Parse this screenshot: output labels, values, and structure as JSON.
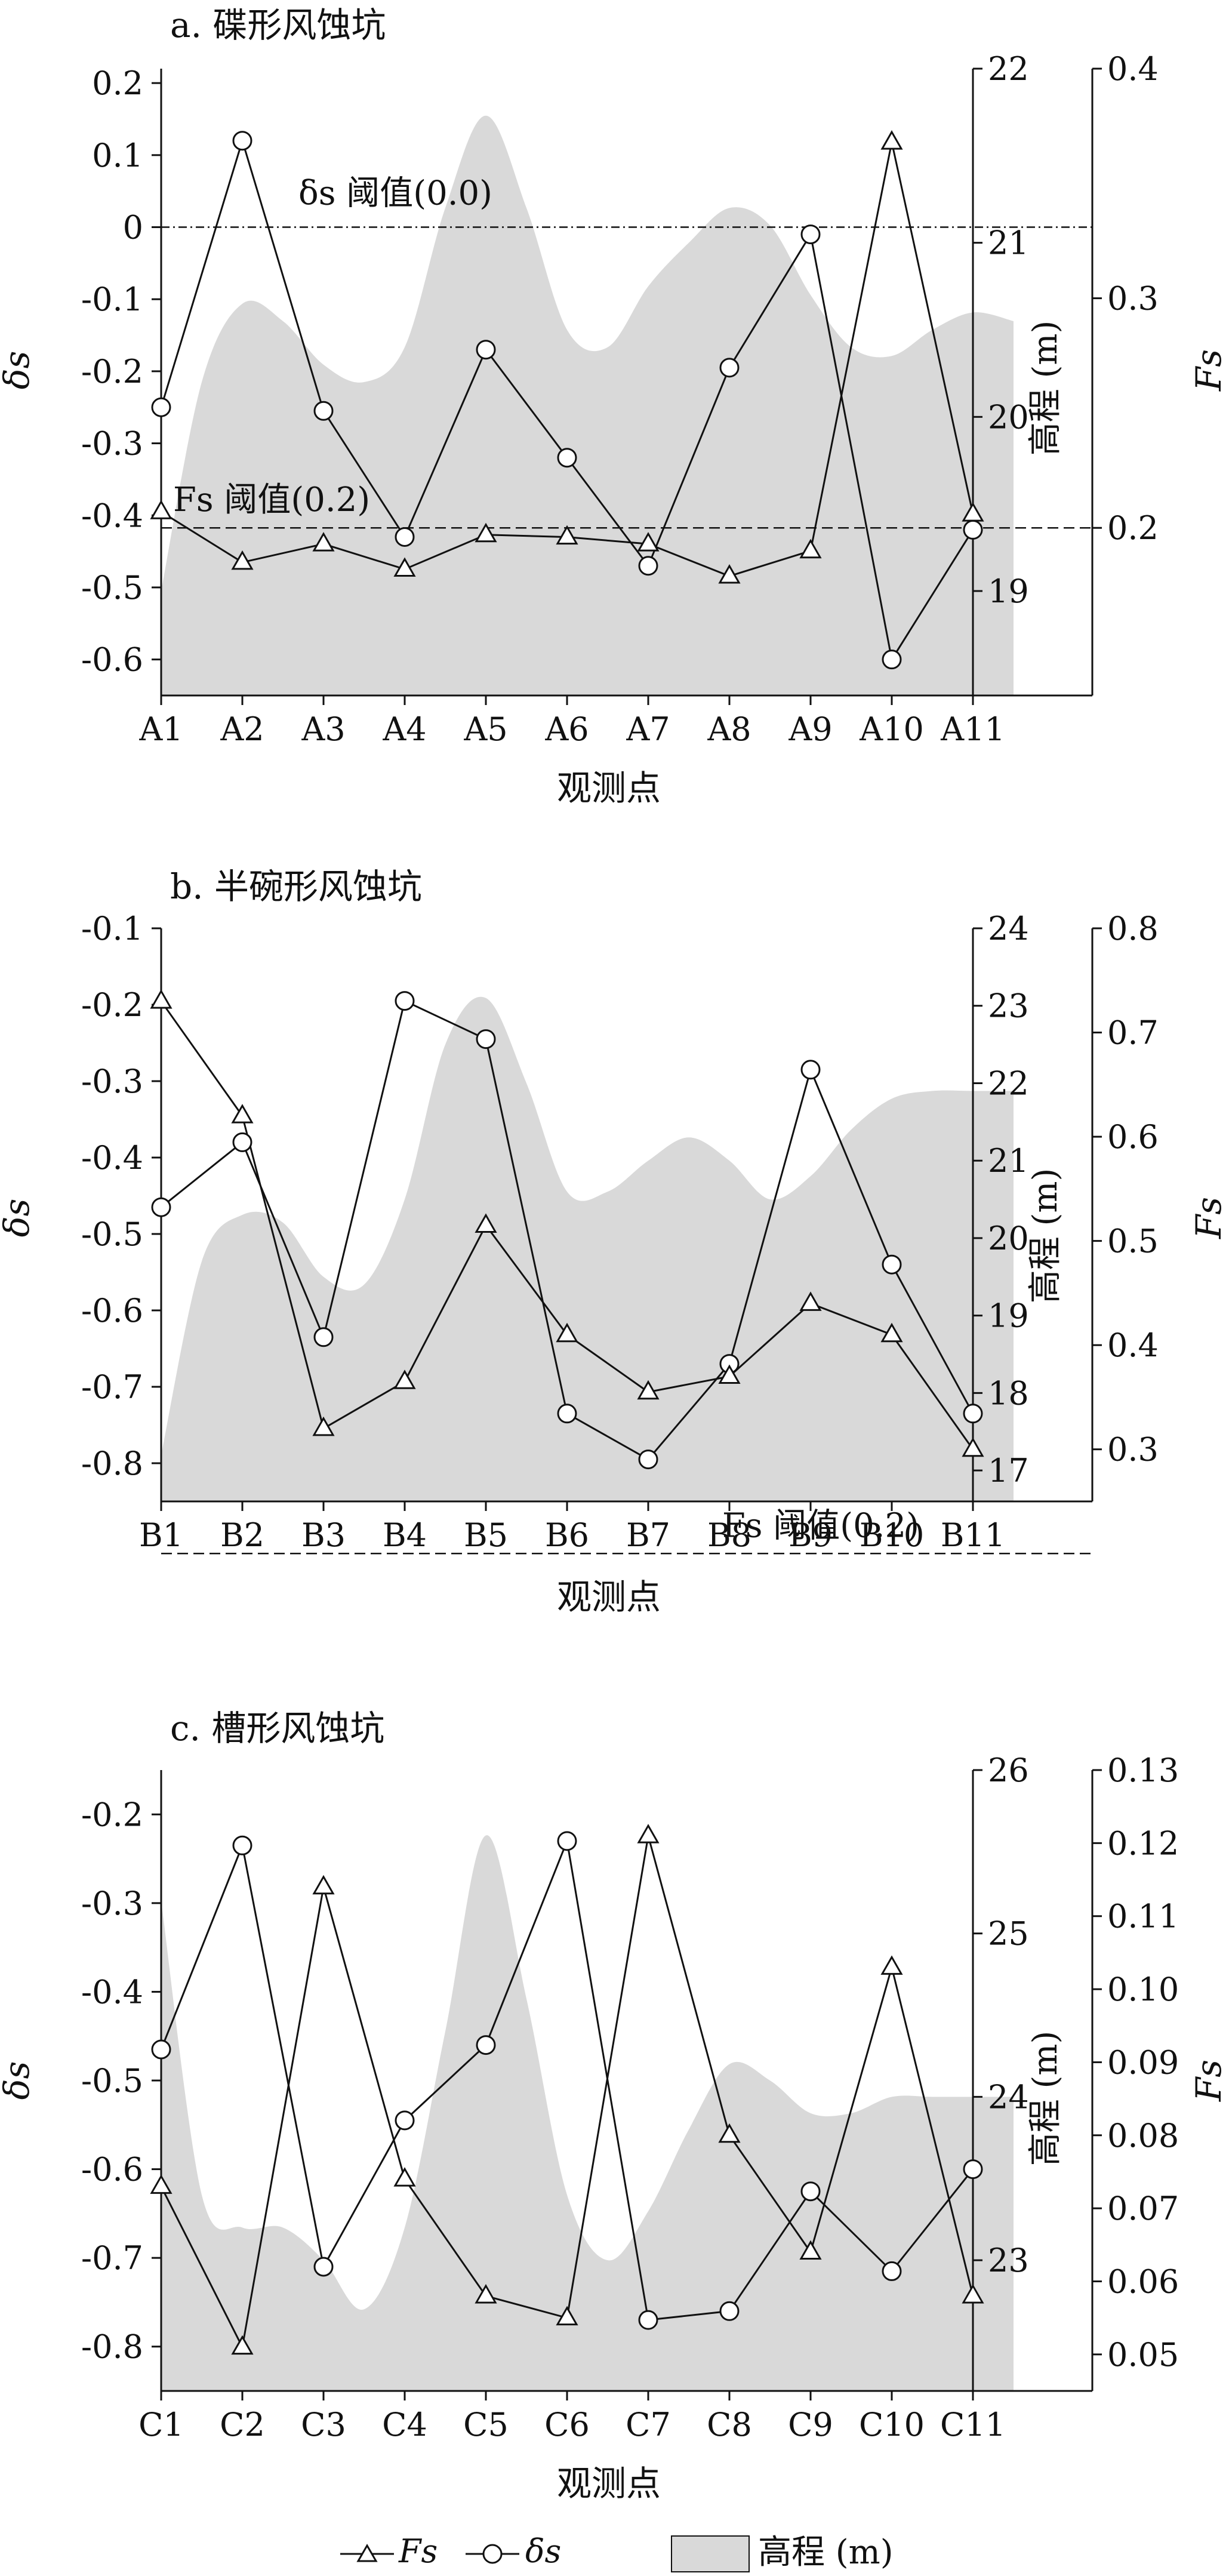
{
  "figure": {
    "legend": {
      "fs_label": "Fs",
      "ds_label": "δs",
      "elev_label": "高程 (m)"
    }
  },
  "chart_data": [
    {
      "type": "line",
      "title": "a. 碟形风蚀坑",
      "xlabel": "观测点",
      "categories": [
        "A1",
        "A2",
        "A3",
        "A4",
        "A5",
        "A6",
        "A7",
        "A8",
        "A9",
        "A10",
        "A11"
      ],
      "ds": {
        "axis_label": "δs",
        "ylim": [
          -0.65,
          0.22
        ],
        "ticks": [
          0.2,
          0.1,
          0,
          -0.1,
          -0.2,
          -0.3,
          -0.4,
          -0.5,
          -0.6
        ],
        "tick_labels": [
          "0.2",
          "0.1",
          "0",
          "-0.1",
          "-0.2",
          "-0.3",
          "-0.4",
          "-0.5",
          "-0.6"
        ],
        "values": [
          -0.25,
          0.12,
          -0.255,
          -0.43,
          -0.17,
          -0.32,
          -0.47,
          -0.195,
          -0.01,
          -0.6,
          -0.42
        ]
      },
      "fs": {
        "axis_label": "Fs",
        "ylim": [
          0.127,
          0.4
        ],
        "ticks": [
          0.4,
          0.3,
          0.2
        ],
        "tick_labels": [
          "0.4",
          "0.3",
          "0.2"
        ],
        "values": [
          0.207,
          0.185,
          0.193,
          0.182,
          0.197,
          0.196,
          0.193,
          0.179,
          0.19,
          0.368,
          0.206
        ]
      },
      "elevation": {
        "axis_label": "高程 (m)",
        "ylim": [
          18.4,
          22.0
        ],
        "ticks": [
          22,
          21,
          20,
          19
        ],
        "tick_labels": [
          "22",
          "21",
          "20",
          "19"
        ],
        "x": [
          0,
          0.5,
          1,
          1.5,
          2,
          2.5,
          3,
          3.5,
          4,
          4.5,
          5,
          5.5,
          6,
          6.5,
          7,
          7.5,
          8,
          8.5,
          9,
          9.5,
          10,
          10.5
        ],
        "values": [
          19.0,
          20.2,
          20.65,
          20.55,
          20.3,
          20.2,
          20.4,
          21.2,
          21.73,
          21.2,
          20.5,
          20.4,
          20.75,
          21.0,
          21.2,
          21.1,
          20.7,
          20.4,
          20.35,
          20.5,
          20.6,
          20.55
        ]
      },
      "thresholds": [
        {
          "label": "δs 阈值(0.0)",
          "axis": "ds",
          "value": 0.0,
          "style": "dashdot"
        },
        {
          "label": "Fs 阈值(0.2)",
          "axis": "fs",
          "value": 0.2,
          "style": "dashed"
        }
      ]
    },
    {
      "type": "line",
      "title": "b. 半碗形风蚀坑",
      "xlabel": "观测点",
      "categories": [
        "B1",
        "B2",
        "B3",
        "B4",
        "B5",
        "B6",
        "B7",
        "B8",
        "B9",
        "B10",
        "B11"
      ],
      "ds": {
        "axis_label": "δs",
        "ylim": [
          -0.85,
          -0.1
        ],
        "ticks": [
          -0.1,
          -0.2,
          -0.3,
          -0.4,
          -0.5,
          -0.6,
          -0.7,
          -0.8
        ],
        "tick_labels": [
          "-0.1",
          "-0.2",
          "-0.3",
          "-0.4",
          "-0.5",
          "-0.6",
          "-0.7",
          "-0.8"
        ],
        "values": [
          -0.465,
          -0.38,
          -0.635,
          -0.195,
          -0.245,
          -0.735,
          -0.795,
          -0.67,
          -0.285,
          -0.54,
          -0.735
        ]
      },
      "fs": {
        "axis_label": "Fs",
        "ylim": [
          0.25,
          0.8
        ],
        "ticks": [
          0.8,
          0.7,
          0.6,
          0.5,
          0.4,
          0.3
        ],
        "tick_labels": [
          "0.8",
          "0.7",
          "0.6",
          "0.5",
          "0.4",
          "0.3"
        ],
        "values": [
          0.73,
          0.62,
          0.32,
          0.365,
          0.515,
          0.41,
          0.355,
          0.37,
          0.44,
          0.41,
          0.3
        ]
      },
      "elevation": {
        "axis_label": "高程 (m)",
        "ylim": [
          16.6,
          24.0
        ],
        "ticks": [
          24,
          23,
          22,
          21,
          20,
          19,
          18,
          17
        ],
        "tick_labels": [
          "24",
          "23",
          "22",
          "21",
          "20",
          "19",
          "18",
          "17"
        ],
        "x": [
          0,
          0.5,
          1,
          1.5,
          2,
          2.5,
          3,
          3.5,
          4,
          4.5,
          5,
          5.5,
          6,
          6.5,
          7,
          7.5,
          8,
          8.5,
          9,
          9.5,
          10,
          10.5
        ],
        "values": [
          17.2,
          19.7,
          20.3,
          20.2,
          19.5,
          19.4,
          20.5,
          22.5,
          23.1,
          22.0,
          20.6,
          20.6,
          21.0,
          21.3,
          21.0,
          20.5,
          20.8,
          21.4,
          21.8,
          21.9,
          21.9,
          21.9
        ]
      },
      "thresholds": [
        {
          "label": "Fs 阈值(0.2)",
          "axis": "fs",
          "value": 0.2,
          "style": "dashed"
        }
      ]
    },
    {
      "type": "line",
      "title": "c. 槽形风蚀坑",
      "xlabel": "观测点",
      "categories": [
        "C1",
        "C2",
        "C3",
        "C4",
        "C5",
        "C6",
        "C7",
        "C8",
        "C9",
        "C10",
        "C11"
      ],
      "ds": {
        "axis_label": "δs",
        "ylim": [
          -0.85,
          -0.15
        ],
        "ticks": [
          -0.2,
          -0.3,
          -0.4,
          -0.5,
          -0.6,
          -0.7,
          -0.8
        ],
        "tick_labels": [
          "-0.2",
          "-0.3",
          "-0.4",
          "-0.5",
          "-0.6",
          "-0.7",
          "-0.8"
        ],
        "values": [
          -0.465,
          -0.235,
          -0.71,
          -0.545,
          -0.46,
          -0.23,
          -0.77,
          -0.76,
          -0.625,
          -0.715,
          -0.6
        ]
      },
      "fs": {
        "axis_label": "Fs",
        "ylim": [
          0.045,
          0.13
        ],
        "ticks": [
          0.13,
          0.12,
          0.11,
          0.1,
          0.09,
          0.08,
          0.07,
          0.06,
          0.05
        ],
        "tick_labels": [
          "0.13",
          "0.12",
          "0.11",
          "0.10",
          "0.09",
          "0.08",
          "0.07",
          "0.06",
          "0.05"
        ],
        "values": [
          0.073,
          0.051,
          0.114,
          0.074,
          0.058,
          0.055,
          0.121,
          0.08,
          0.064,
          0.103,
          0.058
        ]
      },
      "elevation": {
        "axis_label": "高程 (m)",
        "ylim": [
          22.2,
          26.0
        ],
        "ticks": [
          26,
          25,
          24,
          23
        ],
        "tick_labels": [
          "26",
          "25",
          "24",
          "23"
        ],
        "x": [
          0,
          0.5,
          1,
          1.5,
          2,
          2.5,
          3,
          3.5,
          4,
          4.5,
          5,
          5.5,
          6,
          6.5,
          7,
          7.5,
          8,
          8.5,
          9,
          9.5,
          10,
          10.5
        ],
        "values": [
          25.2,
          23.4,
          23.2,
          23.2,
          23.0,
          22.7,
          23.2,
          24.4,
          25.6,
          24.6,
          23.4,
          23.0,
          23.3,
          23.8,
          24.2,
          24.1,
          23.9,
          23.9,
          24.0,
          24.0,
          24.0,
          24.0
        ]
      },
      "thresholds": []
    }
  ]
}
